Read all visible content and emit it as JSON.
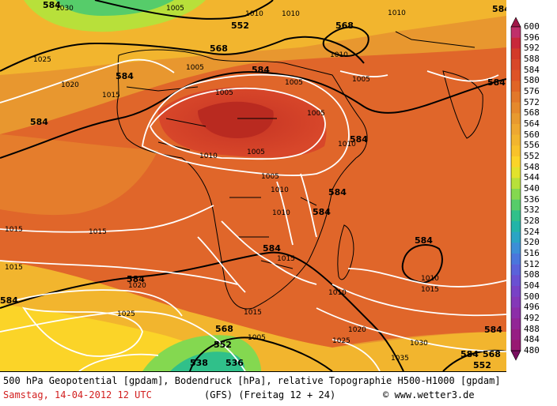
{
  "footer": {
    "line1": "500 hPa Geopotential [gpdam], Bodendruck [hPa], relative Topographie H500-H1000 [gpdam]",
    "date": "Samstag, 14-04-2012  12 UTC",
    "run": "(GFS)  (Freitag 12 + 24)",
    "credit": "© www.wetter3.de"
  },
  "legend": {
    "values": [
      "600",
      "596",
      "592",
      "588",
      "584",
      "580",
      "576",
      "572",
      "568",
      "564",
      "560",
      "556",
      "552",
      "548",
      "544",
      "540",
      "536",
      "532",
      "528",
      "524",
      "520",
      "516",
      "512",
      "508",
      "504",
      "500",
      "496",
      "492",
      "488",
      "484",
      "480"
    ],
    "colors": [
      "#c0306a",
      "#c8283a",
      "#d23a2a",
      "#d8472a",
      "#de5326",
      "#e06526",
      "#e2782a",
      "#e5892d",
      "#e89a30",
      "#eea831",
      "#f2b52e",
      "#f8c22a",
      "#fbd428",
      "#e2e22c",
      "#b8e03a",
      "#84d850",
      "#56cc6a",
      "#30c08a",
      "#22b4a8",
      "#2aa4c4",
      "#3c8ed6",
      "#4a76dc",
      "#5a62da",
      "#6a50d2",
      "#7842c6",
      "#8438b8",
      "#8c2ea8",
      "#922696",
      "#961e84",
      "#981872"
    ],
    "arrow_top_color": "#a01848",
    "arrow_bottom_color": "#7a1060"
  },
  "map": {
    "geopotential_labels": [
      "584",
      "584",
      "584",
      "568",
      "584",
      "584",
      "568",
      "584",
      "584",
      "584",
      "584",
      "584",
      "584",
      "584",
      "568",
      "552",
      "584",
      "552",
      "584",
      "584",
      "568",
      "552",
      "538",
      "536"
    ],
    "pressure_labels": [
      "1005",
      "1005",
      "1010",
      "1010",
      "1030",
      "1025",
      "1020",
      "1015",
      "1005",
      "1005",
      "1005",
      "1005",
      "1010",
      "1005",
      "1005",
      "1010",
      "1010",
      "1010",
      "1010",
      "1015",
      "1015",
      "1015",
      "1015",
      "1020",
      "1025",
      "1010",
      "1015",
      "1010",
      "1015",
      "1020",
      "1025",
      "1030",
      "1035",
      "1005",
      "1010"
    ]
  }
}
